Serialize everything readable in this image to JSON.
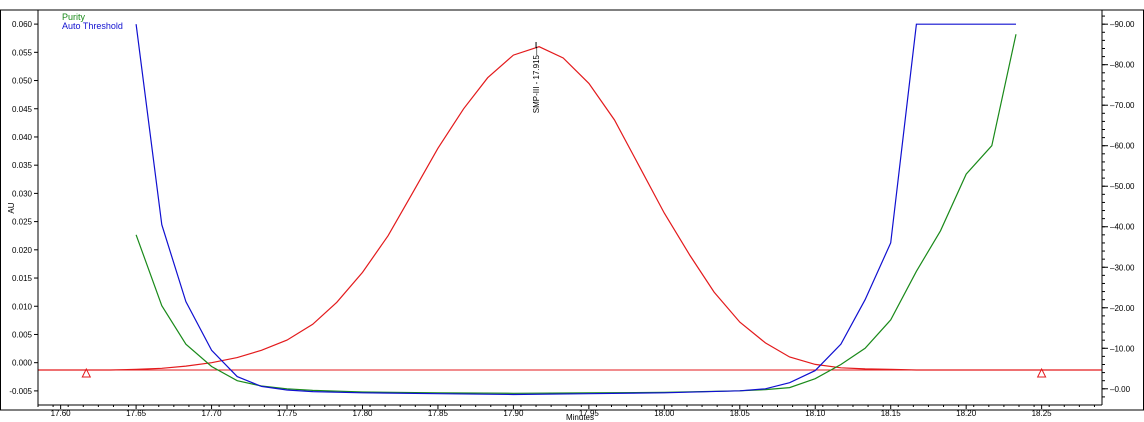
{
  "chart_data": {
    "type": "line",
    "xlabel": "Minutes",
    "ylabel": "AU",
    "xlim": [
      17.585,
      18.29
    ],
    "ylim": [
      -0.0075,
      0.0625
    ],
    "y2lim": [
      -4.0,
      93.5
    ],
    "grid": false,
    "legend_placement": "top-left",
    "x_ticks": [
      "17.60",
      "17.65",
      "17.70",
      "17.75",
      "17.80",
      "17.85",
      "17.90",
      "17.95",
      "18.00",
      "18.05",
      "18.10",
      "18.15",
      "18.20",
      "18.25"
    ],
    "y_ticks": [
      "-0.005",
      "0.000",
      "0.005",
      "0.010",
      "0.015",
      "0.020",
      "0.025",
      "0.030",
      "0.035",
      "0.040",
      "0.045",
      "0.050",
      "0.055",
      "0.060"
    ],
    "y2_ticks": [
      "0.00",
      "10.00",
      "20.00",
      "30.00",
      "40.00",
      "50.00",
      "60.00",
      "70.00",
      "80.00",
      "90.00"
    ],
    "peak_label": {
      "text": "SMP-III - 17.915",
      "x": 17.915,
      "y": 0.0563
    },
    "baseline": {
      "x": [
        17.617,
        18.25
      ],
      "y": [
        -0.0013,
        -0.0013
      ]
    },
    "markers": [
      {
        "x": 17.617,
        "y": -0.0013
      },
      {
        "x": 18.25,
        "y": -0.0013
      }
    ],
    "series": [
      {
        "color": "#e31a1c",
        "axis": "left",
        "x": [
          17.585,
          17.6,
          17.617,
          17.633,
          17.65,
          17.667,
          17.683,
          17.7,
          17.717,
          17.733,
          17.75,
          17.767,
          17.783,
          17.8,
          17.817,
          17.833,
          17.85,
          17.867,
          17.883,
          17.9,
          17.917,
          17.933,
          17.95,
          17.967,
          17.983,
          18.0,
          18.017,
          18.033,
          18.05,
          18.067,
          18.083,
          18.1,
          18.117,
          18.133,
          18.15,
          18.167,
          18.183,
          18.2,
          18.217,
          18.233,
          18.25,
          18.29
        ],
        "y": [
          -0.0013,
          -0.0013,
          -0.0013,
          -0.0013,
          -0.0012,
          -0.001,
          -0.0006,
          0.0,
          0.0009,
          0.0022,
          0.004,
          0.0068,
          0.0107,
          0.016,
          0.0225,
          0.03,
          0.038,
          0.045,
          0.0505,
          0.0545,
          0.056,
          0.054,
          0.0495,
          0.043,
          0.035,
          0.0265,
          0.019,
          0.0125,
          0.0072,
          0.0035,
          0.001,
          -0.0003,
          -0.0009,
          -0.0011,
          -0.0012,
          -0.0013,
          -0.0013,
          -0.0013,
          -0.0013,
          -0.0013,
          -0.0013,
          -0.0013
        ]
      },
      {
        "name": "Purity",
        "color": "#1a8a1a",
        "axis": "right",
        "x": [
          17.65,
          17.667,
          17.683,
          17.7,
          17.717,
          17.733,
          17.75,
          17.767,
          17.8,
          17.85,
          17.9,
          17.95,
          18.0,
          18.05,
          18.067,
          18.083,
          18.1,
          18.117,
          18.133,
          18.15,
          18.167,
          18.183,
          18.2,
          18.217,
          18.233
        ],
        "y": [
          38.0,
          20.5,
          11.0,
          5.5,
          2.0,
          0.7,
          0.0,
          -0.4,
          -0.8,
          -1.0,
          -1.1,
          -1.0,
          -0.9,
          -0.5,
          -0.2,
          0.3,
          2.5,
          6.0,
          10.0,
          17.0,
          29.0,
          39.0,
          53.0,
          60.0,
          87.5
        ]
      },
      {
        "name": "Auto Threshold",
        "color": "#1010d0",
        "axis": "right",
        "x": [
          17.65,
          17.667,
          17.683,
          17.7,
          17.717,
          17.733,
          17.75,
          17.767,
          17.8,
          17.85,
          17.9,
          17.95,
          18.0,
          18.05,
          18.067,
          18.083,
          18.1,
          18.117,
          18.133,
          18.15,
          18.167,
          18.183,
          18.2,
          18.217,
          18.233
        ],
        "y": [
          90.0,
          40.5,
          21.5,
          9.5,
          3.0,
          0.6,
          -0.3,
          -0.7,
          -1.0,
          -1.2,
          -1.4,
          -1.2,
          -1.0,
          -0.5,
          0.0,
          1.5,
          4.5,
          11.0,
          22.0,
          36.0,
          90.0,
          90.0,
          90.0,
          90.0,
          90.0
        ]
      }
    ]
  }
}
